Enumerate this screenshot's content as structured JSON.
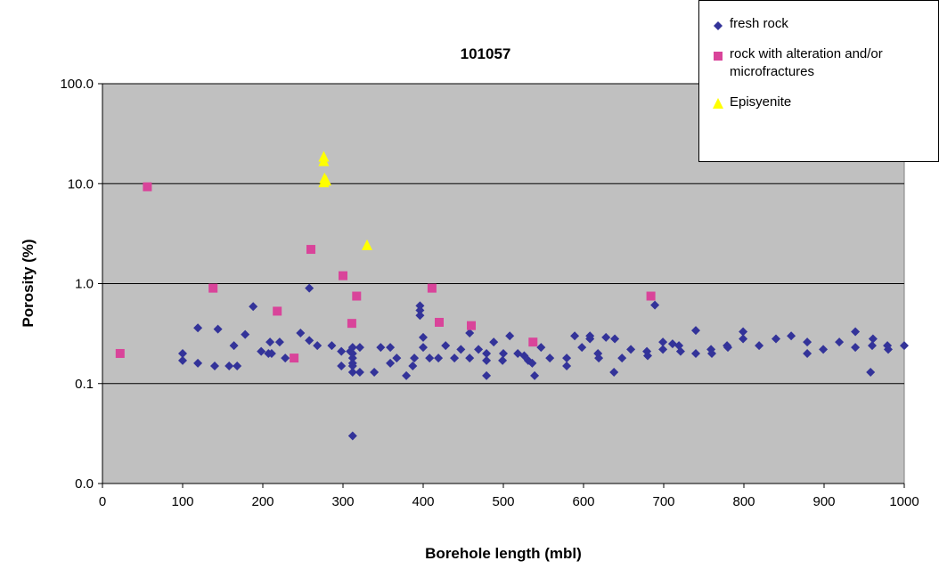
{
  "chart_data": {
    "type": "scatter",
    "title": "101057",
    "x_label": "Borehole length (mbl)",
    "y_label": "Porosity (%)",
    "xlim": [
      0,
      1000
    ],
    "xticks": [
      0,
      100,
      200,
      300,
      400,
      500,
      600,
      700,
      800,
      900,
      1000
    ],
    "ylim": [
      0.01,
      100
    ],
    "y_scale": "log",
    "yticks": [
      {
        "value": 0.01,
        "label": "0.0"
      },
      {
        "value": 0.1,
        "label": "0.1"
      },
      {
        "value": 1,
        "label": "1.0"
      },
      {
        "value": 10,
        "label": "10.0"
      },
      {
        "value": 100,
        "label": "100.0"
      }
    ],
    "grid": true,
    "legend": "upper right",
    "plot_background": "#c0c0c0",
    "series": [
      {
        "name": "fresh rock",
        "color": "#333399",
        "marker": "diamond",
        "x": [
          100,
          100,
          119,
          119,
          140,
          144,
          158,
          164,
          168,
          178,
          188,
          198,
          207,
          209,
          211,
          221,
          228,
          247,
          258,
          258,
          268,
          286,
          298,
          298,
          309,
          312,
          312,
          312,
          312,
          312,
          312,
          312,
          321,
          321,
          339,
          347,
          359,
          359,
          367,
          379,
          387,
          389,
          396,
          396,
          396,
          400,
          400,
          408,
          419,
          428,
          439,
          447,
          458,
          458,
          469,
          479,
          479,
          479,
          488,
          499,
          500,
          508,
          518,
          526,
          531,
          536,
          539,
          547,
          558,
          579,
          579,
          589,
          598,
          608,
          608,
          618,
          619,
          628,
          638,
          639,
          648,
          659,
          679,
          680,
          689,
          699,
          699,
          711,
          719,
          721,
          740,
          740,
          759,
          760,
          779,
          780,
          799,
          799,
          819,
          840,
          859,
          879,
          879,
          899,
          919,
          939,
          939,
          958,
          960,
          961,
          979,
          980,
          1000
        ],
        "values": [
          0.2,
          0.17,
          0.36,
          0.16,
          0.15,
          0.35,
          0.15,
          0.24,
          0.15,
          0.31,
          0.59,
          0.21,
          0.2,
          0.26,
          0.2,
          0.26,
          0.18,
          0.32,
          0.9,
          0.27,
          0.24,
          0.24,
          0.21,
          0.15,
          0.21,
          0.23,
          0.2,
          0.18,
          0.16,
          0.15,
          0.13,
          0.03,
          0.23,
          0.13,
          0.13,
          0.23,
          0.23,
          0.16,
          0.18,
          0.12,
          0.15,
          0.18,
          0.6,
          0.54,
          0.48,
          0.29,
          0.23,
          0.18,
          0.18,
          0.24,
          0.18,
          0.22,
          0.18,
          0.32,
          0.22,
          0.12,
          0.2,
          0.17,
          0.26,
          0.17,
          0.2,
          0.3,
          0.2,
          0.19,
          0.17,
          0.16,
          0.12,
          0.23,
          0.18,
          0.15,
          0.18,
          0.3,
          0.23,
          0.28,
          0.3,
          0.2,
          0.18,
          0.29,
          0.13,
          0.28,
          0.18,
          0.22,
          0.21,
          0.19,
          0.61,
          0.26,
          0.22,
          0.25,
          0.24,
          0.21,
          0.2,
          0.34,
          0.22,
          0.2,
          0.24,
          0.23,
          0.33,
          0.28,
          0.24,
          0.28,
          0.3,
          0.26,
          0.2,
          0.22,
          0.26,
          0.33,
          0.23,
          0.13,
          0.24,
          0.28,
          0.24,
          0.22,
          0.24
        ]
      },
      {
        "name": "rock with alteration and/or microfractures",
        "color": "#d9449a",
        "marker": "square",
        "x": [
          22,
          56,
          138,
          218,
          239,
          260,
          300,
          311,
          317,
          411,
          420,
          460,
          537,
          684
        ],
        "values": [
          0.2,
          9.3,
          0.9,
          0.53,
          0.18,
          2.2,
          1.2,
          0.4,
          0.75,
          0.9,
          0.41,
          0.38,
          0.26,
          0.75
        ]
      },
      {
        "name": "Episyenite",
        "color": "#ffff00",
        "marker": "triangle",
        "x": [
          276,
          276,
          277,
          276,
          279,
          330
        ],
        "values": [
          18.4,
          16.6,
          11.2,
          10.2,
          10.6,
          2.4
        ]
      }
    ]
  }
}
